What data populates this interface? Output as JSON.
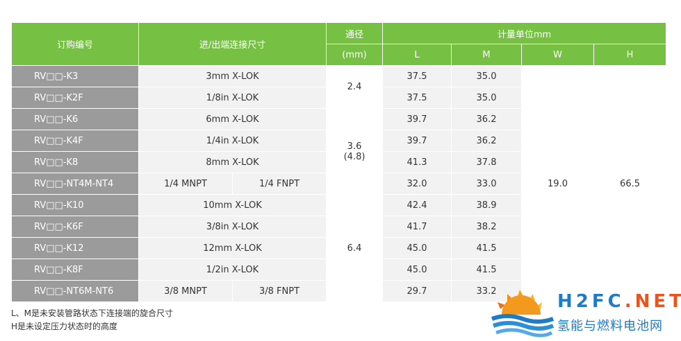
{
  "headers": {
    "order_no": "订购编号",
    "connection": "进/出端连接尺寸",
    "bore": "通径",
    "bore_unit": "(mm)",
    "dims": "计量单位mm",
    "L": "L",
    "M": "M",
    "W": "W",
    "H": "H"
  },
  "rows": [
    {
      "code": "RV□□-K3",
      "conn": "3mm X-LOK",
      "L": "37.5",
      "M": "35.0"
    },
    {
      "code": "RV□□-K2F",
      "conn": "1/8in X-LOK",
      "L": "37.5",
      "M": "35.0"
    },
    {
      "code": "RV□□-K6",
      "conn": "6mm X-LOK",
      "L": "39.7",
      "M": "36.2"
    },
    {
      "code": "RV□□-K4F",
      "conn": "1/4in X-LOK",
      "L": "39.7",
      "M": "36.2"
    },
    {
      "code": "RV□□-K8",
      "conn": "8mm X-LOK",
      "L": "41.3",
      "M": "37.8"
    },
    {
      "code": "RV□□-NT4M-NT4",
      "conn_a": "1/4 MNPT",
      "conn_b": "1/4 FNPT",
      "L": "32.0",
      "M": "33.0"
    },
    {
      "code": "RV□□-K10",
      "conn": "10mm  X-LOK",
      "L": "42.4",
      "M": "38.9"
    },
    {
      "code": "RV□□-K6F",
      "conn": "3/8in  X-LOK",
      "L": "41.7",
      "M": "38.2"
    },
    {
      "code": "RV□□-K12",
      "conn": "12mm  X-LOK",
      "L": "45.0",
      "M": "41.5"
    },
    {
      "code": "RV□□-K8F",
      "conn": "1/2in  X-LOK",
      "L": "45.0",
      "M": "41.5"
    },
    {
      "code": "RV□□-NT6M-NT6",
      "conn_a": "3/8 MNPT",
      "conn_b": "3/8 FNPT",
      "L": "29.7",
      "M": "33.2"
    }
  ],
  "bore_groups": {
    "g1": "2.4",
    "g2_line1": "3.6",
    "g2_line2": "(4.8)",
    "g3": "6.4"
  },
  "W_value": "19.0",
  "H_value": "66.5",
  "notes": [
    "L、M是未安装管路状态下连接端的旋合尺寸",
    "H是未设定压力状态时的高度"
  ],
  "logo": {
    "brand_h2fc": "H2FC",
    "brand_dot": ".",
    "brand_net": "NET",
    "tagline": "氢能与燃料电池网",
    "colors": {
      "blue": "#1f7ac7",
      "orange": "#e8561f"
    }
  }
}
